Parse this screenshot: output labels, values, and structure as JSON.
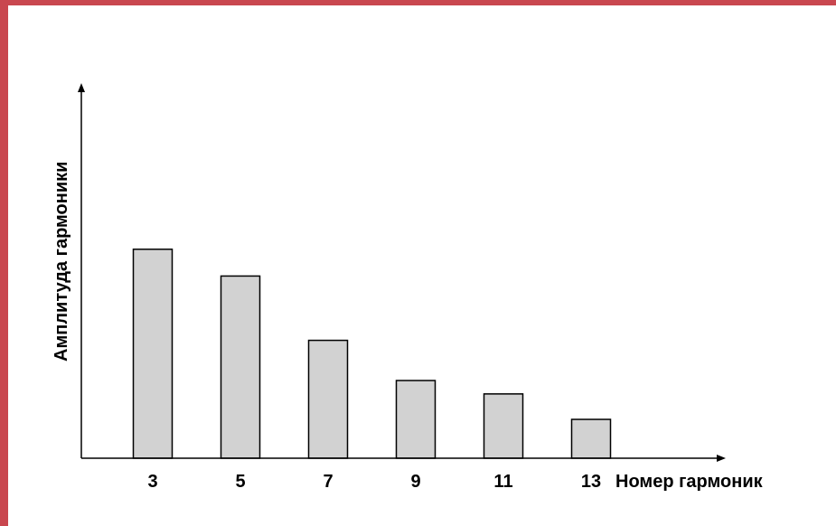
{
  "chart_data": {
    "type": "bar",
    "categories": [
      "3",
      "5",
      "7",
      "9",
      "11",
      "13"
    ],
    "values": [
      78,
      68,
      44,
      29,
      24,
      14.5
    ],
    "xlabel": "Номер гармоник",
    "ylabel": "Амплитуда гармоники",
    "ylim": [
      0,
      140
    ],
    "grid": false,
    "colors": {
      "bar_fill": "#d2d2d2",
      "bar_stroke": "#000000",
      "frame": "#c9474f"
    }
  }
}
